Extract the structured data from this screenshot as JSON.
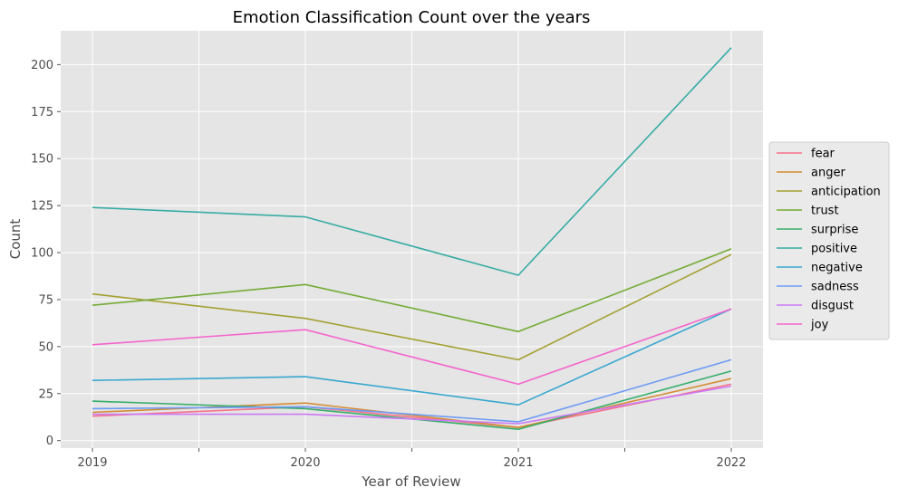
{
  "chart_data": {
    "type": "line",
    "title": "Emotion Classification Count over the years",
    "xlabel": "Year of Review",
    "ylabel": "Count",
    "x": [
      "2019",
      "2020",
      "2021",
      "2022"
    ],
    "ylim": [
      -4,
      218
    ],
    "yticks": [
      0,
      25,
      50,
      75,
      100,
      125,
      150,
      175,
      200
    ],
    "grid": true,
    "legend_position": "right",
    "series": [
      {
        "name": "fear",
        "color": "#f77189",
        "values": [
          13,
          18,
          7,
          30
        ]
      },
      {
        "name": "anger",
        "color": "#d58c32",
        "values": [
          15,
          20,
          7,
          33
        ]
      },
      {
        "name": "anticipation",
        "color": "#a4a031",
        "values": [
          78,
          65,
          43,
          99
        ]
      },
      {
        "name": "trust",
        "color": "#74ab35",
        "values": [
          72,
          83,
          58,
          102
        ]
      },
      {
        "name": "surprise",
        "color": "#34ae6a",
        "values": [
          21,
          17,
          6,
          37
        ]
      },
      {
        "name": "positive",
        "color": "#35aca4",
        "values": [
          124,
          119,
          88,
          209
        ]
      },
      {
        "name": "negative",
        "color": "#38a7d0",
        "values": [
          32,
          34,
          19,
          70
        ]
      },
      {
        "name": "sadness",
        "color": "#6e9bf4",
        "values": [
          17,
          18,
          10,
          43
        ]
      },
      {
        "name": "disgust",
        "color": "#cc79f4",
        "values": [
          14,
          14,
          9,
          29
        ]
      },
      {
        "name": "joy",
        "color": "#f565cc",
        "values": [
          51,
          59,
          30,
          70
        ]
      }
    ]
  }
}
